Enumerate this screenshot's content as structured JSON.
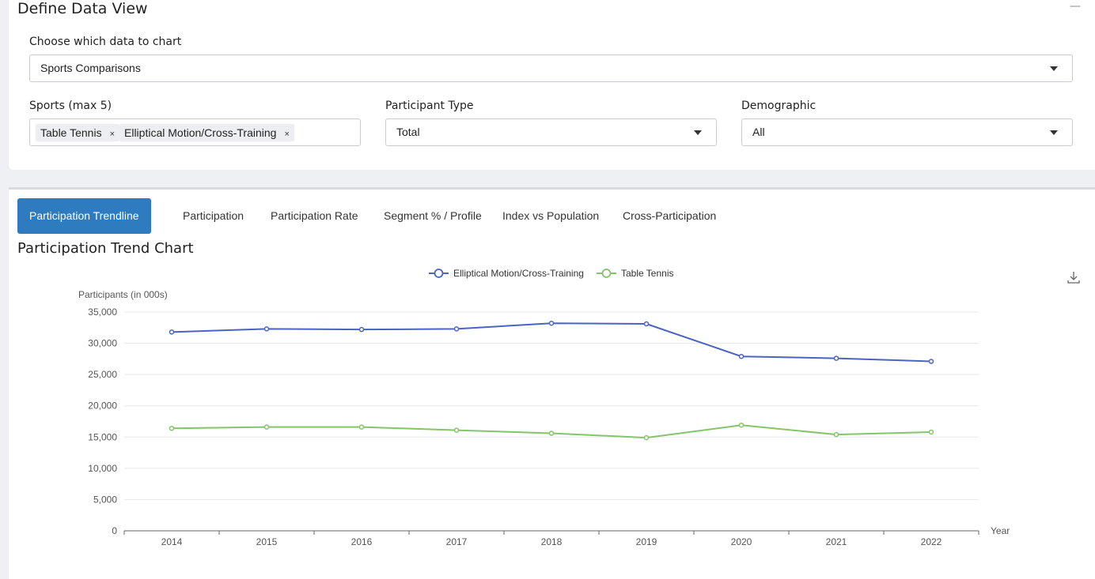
{
  "define": {
    "title": "Define Data View",
    "collapse": "—",
    "choose_label": "Choose which data to chart",
    "choose_value": "Sports Comparisons",
    "sports_label": "Sports (max 5)",
    "sports_tags": [
      "Table Tennis",
      "Elliptical Motion/Cross-Training"
    ],
    "tag_remove": "×",
    "participant_label": "Participant Type",
    "participant_value": "Total",
    "demographic_label": "Demographic",
    "demographic_value": "All"
  },
  "tabs": [
    {
      "label": "Participation Trendline",
      "active": true
    },
    {
      "label": "Participation"
    },
    {
      "label": "Participation Rate"
    },
    {
      "label": "Segment % / Profile"
    },
    {
      "label": "Index vs Population"
    },
    {
      "label": "Cross-Participation"
    }
  ],
  "chart_title": "Participation Trend Chart",
  "icons": {
    "download": "download-icon"
  },
  "chart_data": {
    "type": "line",
    "ylabel": "Participants (in 000s)",
    "xlabel": "Year",
    "ylim": [
      0,
      35000
    ],
    "yticks": [
      "0",
      "5,000",
      "10,000",
      "15,000",
      "20,000",
      "25,000",
      "30,000",
      "35,000"
    ],
    "categories": [
      "2014",
      "2015",
      "2016",
      "2017",
      "2018",
      "2019",
      "2020",
      "2021",
      "2022"
    ],
    "legend_position": "top-center",
    "grid": true,
    "series": [
      {
        "name": "Elliptical Motion/Cross-Training",
        "color": "#4a63c4",
        "values": [
          31800,
          32300,
          32200,
          32300,
          33200,
          33100,
          27900,
          27600,
          27100
        ]
      },
      {
        "name": "Table Tennis",
        "color": "#84c46a",
        "values": [
          16400,
          16600,
          16600,
          16100,
          15600,
          14900,
          16900,
          15400,
          15800
        ]
      }
    ]
  }
}
